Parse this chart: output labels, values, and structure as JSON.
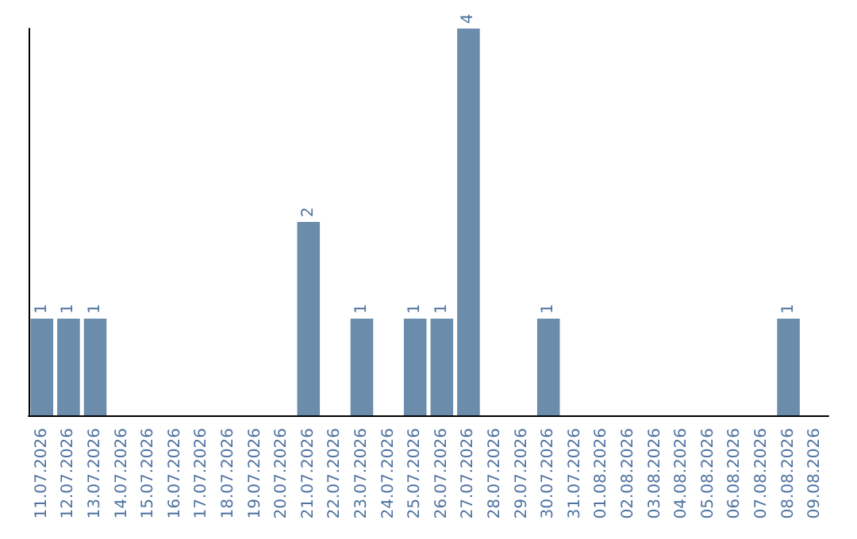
{
  "chart_data": {
    "type": "bar",
    "categories": [
      "11.07.2026",
      "12.07.2026",
      "13.07.2026",
      "14.07.2026",
      "15.07.2026",
      "16.07.2026",
      "17.07.2026",
      "18.07.2026",
      "19.07.2026",
      "20.07.2026",
      "21.07.2026",
      "22.07.2026",
      "23.07.2026",
      "24.07.2026",
      "25.07.2026",
      "26.07.2026",
      "27.07.2026",
      "28.07.2026",
      "29.07.2026",
      "30.07.2026",
      "31.07.2026",
      "01.08.2026",
      "02.08.2026",
      "03.08.2026",
      "04.08.2026",
      "05.08.2026",
      "06.08.2026",
      "07.08.2026",
      "08.08.2026",
      "09.08.2026"
    ],
    "values": [
      1,
      1,
      1,
      0,
      0,
      0,
      0,
      0,
      0,
      0,
      2,
      0,
      1,
      0,
      1,
      1,
      4,
      0,
      0,
      1,
      0,
      0,
      0,
      0,
      0,
      0,
      0,
      0,
      1,
      0
    ],
    "value_labels": [
      "1",
      "1",
      "1",
      null,
      null,
      null,
      null,
      null,
      null,
      null,
      "2",
      null,
      "1",
      null,
      "1",
      "1",
      "4",
      null,
      null,
      "1",
      null,
      null,
      null,
      null,
      null,
      null,
      null,
      null,
      "1",
      null
    ],
    "color": "#6b8cab",
    "grid": false,
    "tick_labels": "x"
  }
}
